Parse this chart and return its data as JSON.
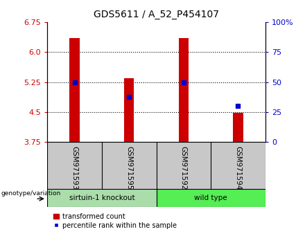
{
  "title": "GDS5611 / A_52_P454107",
  "samples": [
    "GSM971593",
    "GSM971595",
    "GSM971592",
    "GSM971594"
  ],
  "bar_values": [
    6.35,
    5.35,
    6.35,
    4.48
  ],
  "blue_marker_values": [
    5.25,
    4.88,
    5.25,
    4.65
  ],
  "ymin": 3.75,
  "ymax": 6.75,
  "yticks_left": [
    3.75,
    4.5,
    5.25,
    6.0,
    6.75
  ],
  "yticks_right_labels": [
    "0",
    "25",
    "50",
    "75",
    "100%"
  ],
  "yticks_right_vals": [
    3.75,
    4.5,
    5.25,
    6.0,
    6.75
  ],
  "bar_color": "#cc0000",
  "marker_color": "#0000cc",
  "group1_label": "sirtuin-1 knockout",
  "group2_label": "wild type",
  "group1_bg": "#c8c8c8",
  "group2_bg": "#c8c8c8",
  "group1_fill": "#aaddaa",
  "group2_fill": "#55ee55",
  "legend_bar_label": "transformed count",
  "legend_marker_label": "percentile rank within the sample",
  "left_axis_color": "#cc0000",
  "right_axis_color": "#0000cc",
  "bar_width": 0.18,
  "x_positions": [
    1,
    2,
    3,
    4
  ],
  "genotype_label": "genotype/variation"
}
